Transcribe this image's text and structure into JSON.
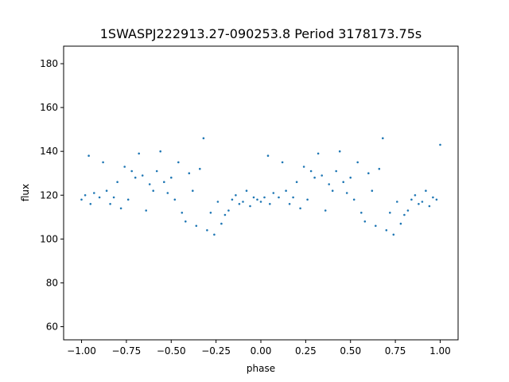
{
  "chart_data": {
    "type": "scatter",
    "title": "1SWASPJ222913.27-090253.8 Period 3178173.75s",
    "xlabel": "phase",
    "ylabel": "flux",
    "xlim": [
      -1.1,
      1.1
    ],
    "ylim": [
      54,
      188
    ],
    "x_ticks": [
      -1.0,
      -0.75,
      -0.5,
      -0.25,
      0.0,
      0.25,
      0.5,
      0.75,
      1.0
    ],
    "x_tick_labels": [
      "−1.00",
      "−0.75",
      "−0.50",
      "−0.25",
      "0.00",
      "0.25",
      "0.50",
      "0.75",
      "1.00"
    ],
    "y_ticks": [
      60,
      80,
      100,
      120,
      140,
      160,
      180
    ],
    "y_tick_labels": [
      "60",
      "80",
      "100",
      "120",
      "140",
      "160",
      "180"
    ],
    "grid": false,
    "legend": "none",
    "marker_color": "#1f77b4",
    "series": [
      {
        "name": "",
        "x": [
          -1.0,
          -0.98,
          -0.96,
          -0.95,
          -0.93,
          -0.9,
          -0.88,
          -0.86,
          -0.84,
          -0.82,
          -0.8,
          -0.78,
          -0.76,
          -0.74,
          -0.72,
          -0.7,
          -0.68,
          -0.66,
          -0.64,
          -0.62,
          -0.6,
          -0.58,
          -0.56,
          -0.54,
          -0.52,
          -0.5,
          -0.48,
          -0.46,
          -0.44,
          -0.42,
          -0.4,
          -0.38,
          -0.36,
          -0.34,
          -0.32,
          -0.3,
          -0.28,
          -0.26,
          -0.24,
          -0.22,
          -0.2,
          -0.18,
          -0.16,
          -0.14,
          -0.12,
          -0.1,
          -0.08,
          -0.06,
          -0.04,
          -0.02,
          0.0,
          0.02,
          0.04,
          0.05,
          0.07,
          0.1,
          0.12,
          0.14,
          0.16,
          0.18,
          0.2,
          0.22,
          0.24,
          0.26,
          0.28,
          0.3,
          0.32,
          0.34,
          0.36,
          0.38,
          0.4,
          0.42,
          0.44,
          0.46,
          0.48,
          0.5,
          0.52,
          0.54,
          0.56,
          0.58,
          0.6,
          0.62,
          0.64,
          0.66,
          0.68,
          0.7,
          0.72,
          0.74,
          0.76,
          0.78,
          0.8,
          0.82,
          0.84,
          0.86,
          0.88,
          0.9,
          0.92,
          0.94,
          0.96,
          0.98,
          1.0
        ],
        "y": [
          118,
          120,
          138,
          116,
          121,
          119,
          135,
          122,
          116,
          119,
          126,
          114,
          133,
          118,
          131,
          128,
          139,
          129,
          113,
          125,
          122,
          131,
          140,
          126,
          121,
          128,
          118,
          135,
          112,
          108,
          130,
          122,
          106,
          132,
          146,
          104,
          112,
          102,
          117,
          107,
          111,
          113,
          118,
          120,
          116,
          117,
          122,
          115,
          119,
          118,
          117,
          119,
          138,
          116,
          121,
          119,
          135,
          122,
          116,
          119,
          126,
          114,
          133,
          118,
          131,
          128,
          139,
          129,
          113,
          125,
          122,
          131,
          140,
          126,
          121,
          128,
          118,
          135,
          112,
          108,
          130,
          122,
          106,
          132,
          146,
          104,
          112,
          102,
          117,
          107,
          111,
          113,
          118,
          120,
          116,
          117,
          122,
          115,
          119,
          118,
          143
        ]
      }
    ]
  }
}
